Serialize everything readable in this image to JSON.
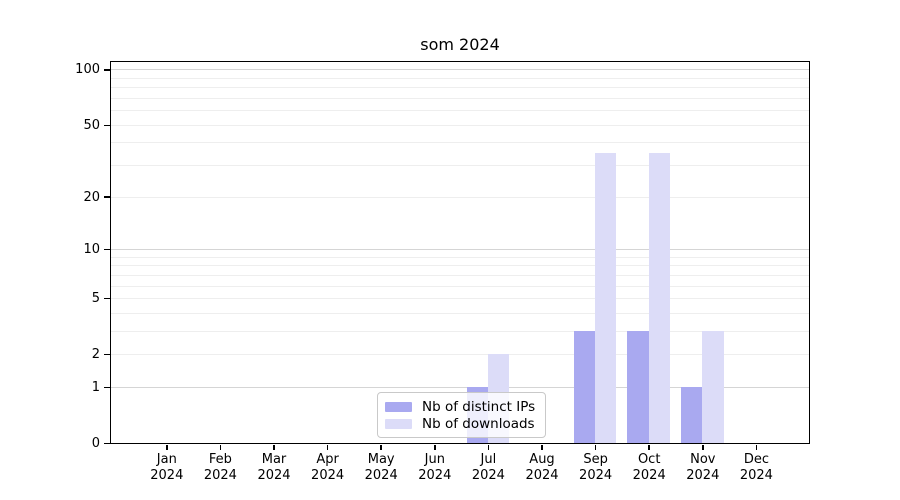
{
  "chart_data": {
    "type": "bar",
    "title": "som 2024",
    "x_axis": {
      "categories": [
        "Jan",
        "Feb",
        "Mar",
        "Apr",
        "May",
        "Jun",
        "Jul",
        "Aug",
        "Sep",
        "Oct",
        "Nov",
        "Dec"
      ],
      "year_label": "2024"
    },
    "y_axis": {
      "scale": "symlog",
      "tick_values": [
        100,
        50,
        20,
        10,
        5,
        2,
        1,
        0
      ],
      "tick_labels": [
        "100",
        "50",
        "20",
        "10",
        "5",
        "2",
        "1",
        "0"
      ],
      "major_gridline_values": [
        1,
        10,
        100
      ],
      "minor_gridline_values": [
        2,
        3,
        4,
        5,
        6,
        7,
        8,
        9,
        20,
        30,
        40,
        50,
        60,
        70,
        80,
        90
      ],
      "ylim": [
        0,
        112
      ],
      "grid": true
    },
    "series": [
      {
        "name": "Nb of distinct IPs",
        "color": "#a9a9f0",
        "values": [
          0,
          0,
          0,
          0,
          0,
          0,
          1,
          0,
          3,
          3,
          1,
          0
        ]
      },
      {
        "name": "Nb of downloads",
        "color": "#dcdcf8",
        "values": [
          0,
          0,
          0,
          0,
          0,
          0,
          2,
          0,
          35,
          35,
          3,
          0
        ]
      }
    ],
    "legend": {
      "position": "lower center",
      "items": [
        "Nb of distinct IPs",
        "Nb of downloads"
      ]
    },
    "colors": {
      "distinct_ips": "#a9a9f0",
      "downloads": "#dcdcf8",
      "major_grid": "#d5d5d5",
      "minor_grid": "#eeeeee",
      "axis": "#000000",
      "background": "#ffffff"
    }
  }
}
